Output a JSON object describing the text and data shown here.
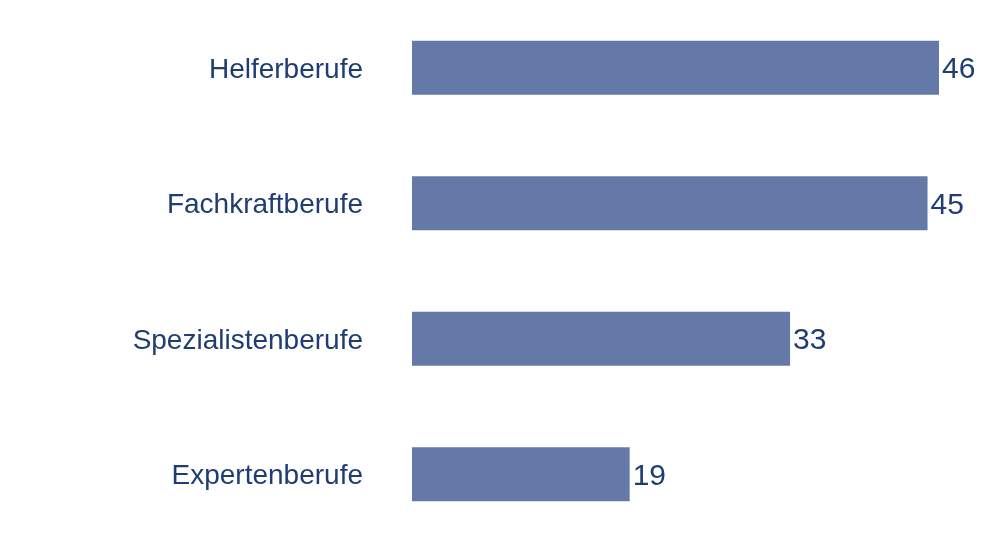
{
  "chart_data": {
    "type": "bar",
    "orientation": "horizontal",
    "data_labels": true,
    "categories": [
      "Helferberufe",
      "Fachkraftberufe",
      "Spezialistenberufe",
      "Expertenberufe"
    ],
    "values": [
      46,
      45,
      33,
      19
    ],
    "color": "#6479a8"
  }
}
